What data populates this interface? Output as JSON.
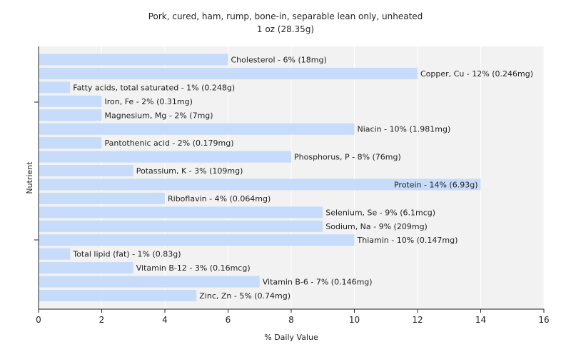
{
  "chart_data": {
    "type": "bar",
    "orientation": "horizontal",
    "title": "Pork, cured, ham, rump, bone-in, separable lean only, unheated",
    "subtitle": "1 oz (28.35g)",
    "xlabel": "% Daily Value",
    "ylabel": "Nutrient",
    "xlim": [
      0,
      16
    ],
    "xticks": [
      0,
      2,
      4,
      6,
      8,
      10,
      12,
      14,
      16
    ],
    "grid": true,
    "bar_color": "#c6dcfa",
    "bars": [
      {
        "name": "Cholesterol",
        "value": 6,
        "label": "Cholesterol - 6% (18mg)"
      },
      {
        "name": "Copper, Cu",
        "value": 12,
        "label": "Copper, Cu - 12% (0.246mg)"
      },
      {
        "name": "Fatty acids, total saturated",
        "value": 1,
        "label": "Fatty acids, total saturated - 1% (0.248g)"
      },
      {
        "name": "Iron, Fe",
        "value": 2,
        "label": "Iron, Fe - 2% (0.31mg)"
      },
      {
        "name": "Magnesium, Mg",
        "value": 2,
        "label": "Magnesium, Mg - 2% (7mg)"
      },
      {
        "name": "Niacin",
        "value": 10,
        "label": "Niacin - 10% (1.981mg)"
      },
      {
        "name": "Pantothenic acid",
        "value": 2,
        "label": "Pantothenic acid - 2% (0.179mg)"
      },
      {
        "name": "Phosphorus, P",
        "value": 8,
        "label": "Phosphorus, P - 8% (76mg)"
      },
      {
        "name": "Potassium, K",
        "value": 3,
        "label": "Potassium, K - 3% (109mg)"
      },
      {
        "name": "Protein",
        "value": 14,
        "label": "Protein - 14% (6.93g)"
      },
      {
        "name": "Riboflavin",
        "value": 4,
        "label": "Riboflavin - 4% (0.064mg)"
      },
      {
        "name": "Selenium, Se",
        "value": 9,
        "label": "Selenium, Se - 9% (6.1mcg)"
      },
      {
        "name": "Sodium, Na",
        "value": 9,
        "label": "Sodium, Na - 9% (209mg)"
      },
      {
        "name": "Thiamin",
        "value": 10,
        "label": "Thiamin - 10% (0.147mg)"
      },
      {
        "name": "Total lipid (fat)",
        "value": 1,
        "label": "Total lipid (fat) - 1% (0.83g)"
      },
      {
        "name": "Vitamin B-12",
        "value": 3,
        "label": "Vitamin B-12 - 3% (0.16mcg)"
      },
      {
        "name": "Vitamin B-6",
        "value": 7,
        "label": "Vitamin B-6 - 7% (0.146mg)"
      },
      {
        "name": "Zinc, Zn",
        "value": 5,
        "label": "Zinc, Zn - 5% (0.74mg)"
      }
    ]
  }
}
